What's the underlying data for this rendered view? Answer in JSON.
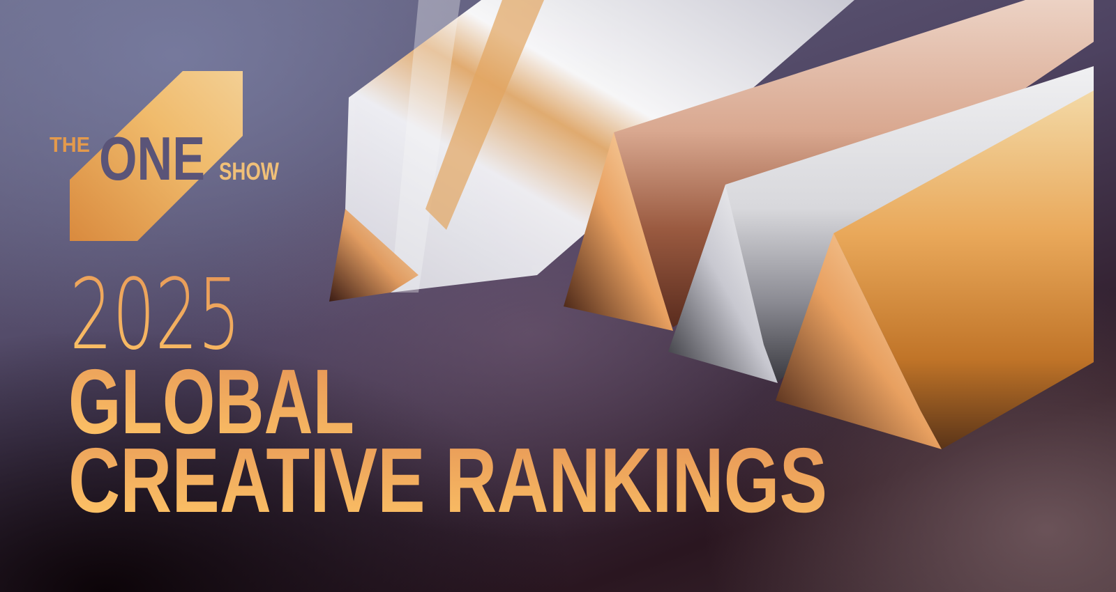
{
  "logo": {
    "the": "THE",
    "one": "ONE",
    "show": "SHOW"
  },
  "headline": {
    "year": "2025",
    "line1": "GLOBAL",
    "line2": "CREATIVE RANKINGS"
  },
  "colors": {
    "gold": "#f0a860",
    "logo_purple": "#5a5478",
    "background": "#4d4260"
  },
  "artwork": [
    "crystal-pencil",
    "bronze-pencil",
    "silver-pencil",
    "gold-pencil"
  ]
}
